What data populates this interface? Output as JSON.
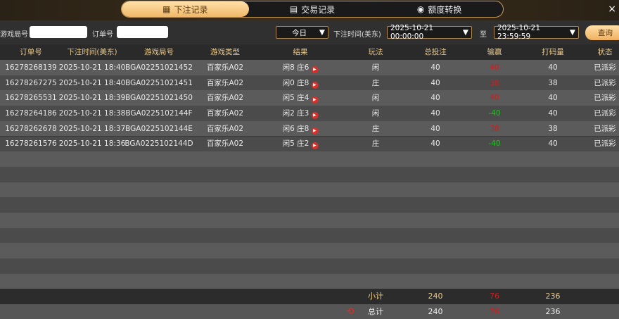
{
  "tabs": [
    {
      "label": "下注记录",
      "icon": "calendar-icon",
      "active": true
    },
    {
      "label": "交易记录",
      "icon": "receipt-icon",
      "active": false
    },
    {
      "label": "额度转换",
      "icon": "coin-exchange-icon",
      "active": false
    }
  ],
  "close": "×",
  "filter": {
    "game_round_label": "游戏局号",
    "game_round_value": "",
    "order_label": "订单号",
    "order_value": "",
    "period": "今日",
    "time_label": "下注时间(美东)",
    "start": "2025-10-21 00:00:00",
    "to": "至",
    "end": "2025-10-21 23:59:59",
    "query": "查询"
  },
  "columns": [
    "订单号",
    "下注时间(美东)",
    "游戏局号",
    "游戏类型",
    "结果",
    "玩法",
    "总投注",
    "输赢",
    "打码量",
    "状态"
  ],
  "rows": [
    {
      "order": "16278268139",
      "time": "2025-10-21 18:40",
      "round": "BGA02251021452",
      "type": "百家乐A02",
      "result": "闲8 庄6",
      "play": "闲",
      "bet": "40",
      "win": "40",
      "win_color": "red",
      "valid": "40",
      "status": "已派彩"
    },
    {
      "order": "16278267275",
      "time": "2025-10-21 18:40",
      "round": "BGA02251021451",
      "type": "百家乐A02",
      "result": "闲0 庄8",
      "play": "庄",
      "bet": "40",
      "win": "38",
      "win_color": "red",
      "valid": "38",
      "status": "已派彩"
    },
    {
      "order": "16278265531",
      "time": "2025-10-21 18:39",
      "round": "BGA02251021450",
      "type": "百家乐A02",
      "result": "闲5 庄4",
      "play": "闲",
      "bet": "40",
      "win": "40",
      "win_color": "red",
      "valid": "40",
      "status": "已派彩"
    },
    {
      "order": "16278264186",
      "time": "2025-10-21 18:38",
      "round": "BGA0225102144F",
      "type": "百家乐A02",
      "result": "闲2 庄3",
      "play": "闲",
      "bet": "40",
      "win": "-40",
      "win_color": "green",
      "valid": "40",
      "status": "已派彩"
    },
    {
      "order": "16278262678",
      "time": "2025-10-21 18:37",
      "round": "BGA0225102144E",
      "type": "百家乐A02",
      "result": "闲6 庄8",
      "play": "庄",
      "bet": "40",
      "win": "38",
      "win_color": "red",
      "valid": "38",
      "status": "已派彩"
    },
    {
      "order": "16278261576",
      "time": "2025-10-21 18:36",
      "round": "BGA0225102144D",
      "type": "百家乐A02",
      "result": "闲5 庄2",
      "play": "庄",
      "bet": "40",
      "win": "-40",
      "win_color": "green",
      "valid": "40",
      "status": "已派彩"
    }
  ],
  "subtotal": {
    "label": "小计",
    "bet": "240",
    "win": "76",
    "valid": "236"
  },
  "total": {
    "label": "总计",
    "bet": "240",
    "win": "76",
    "valid": "236"
  },
  "colors": {
    "accent": "#f0b868",
    "win_red": "#c82020",
    "loss_green": "#22c022"
  }
}
